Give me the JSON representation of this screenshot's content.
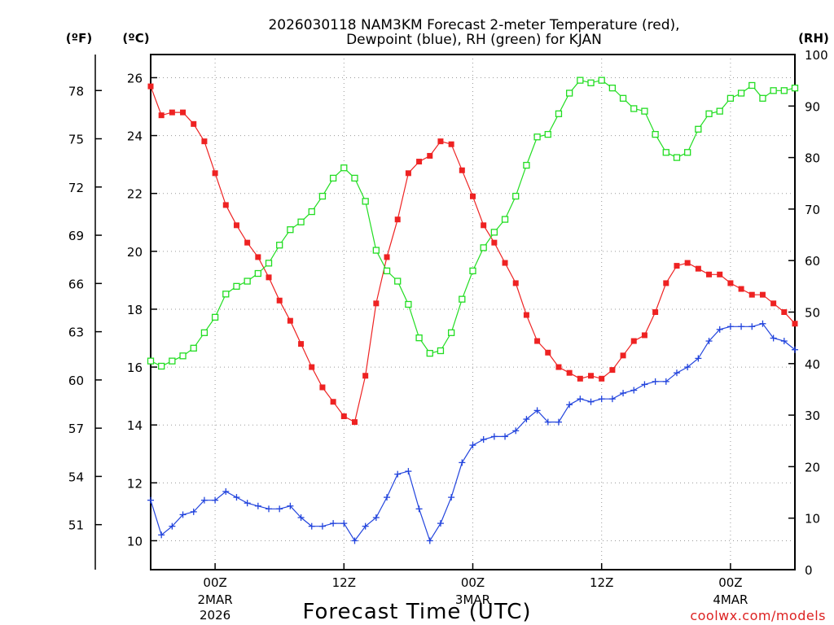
{
  "chart_data": {
    "type": "line",
    "title_line1": "2026030118 NAM3KM Forecast 2-meter Temperature (red),",
    "title_line2": "Dewpoint (blue), RH (green) for KJAN",
    "xlabel": "Forecast Time (UTC)",
    "credit": "coolwx.com/models",
    "units": {
      "fahrenheit": "(ºF)",
      "celsius": "(ºC)",
      "rh": "(RH)"
    },
    "x_range_hours": [
      0,
      60
    ],
    "ylim_celsius": [
      9,
      26.8
    ],
    "ylim_rh": [
      0,
      100
    ],
    "y_ticks_celsius": [
      "10",
      "12",
      "14",
      "16",
      "18",
      "20",
      "22",
      "24",
      "26"
    ],
    "y_ticks_fahrenheit": [
      "51",
      "54",
      "57",
      "60",
      "63",
      "66",
      "69",
      "72",
      "75",
      "78"
    ],
    "y_ticks_rh": [
      "0",
      "10",
      "20",
      "30",
      "40",
      "50",
      "60",
      "70",
      "80",
      "90",
      "100"
    ],
    "x_ticks": [
      {
        "hour": 6,
        "label": "00Z",
        "sub1": "2MAR",
        "sub2": "2026"
      },
      {
        "hour": 18,
        "label": "12Z",
        "sub1": "",
        "sub2": ""
      },
      {
        "hour": 30,
        "label": "00Z",
        "sub1": "3MAR",
        "sub2": ""
      },
      {
        "hour": 42,
        "label": "12Z",
        "sub1": "",
        "sub2": ""
      },
      {
        "hour": 54,
        "label": "00Z",
        "sub1": "4MAR",
        "sub2": ""
      }
    ],
    "series": [
      {
        "name": "Temperature (°C)",
        "color": "#ee2222",
        "axis": "celsius",
        "marker": "filled-square",
        "values": [
          25.7,
          24.7,
          24.8,
          24.8,
          24.4,
          23.8,
          22.7,
          21.6,
          20.9,
          20.3,
          19.8,
          19.1,
          18.3,
          17.6,
          16.8,
          16.0,
          15.3,
          14.8,
          14.3,
          14.1,
          15.7,
          18.2,
          19.8,
          21.1,
          22.7,
          23.1,
          23.3,
          23.8,
          23.7,
          22.8,
          21.9,
          20.9,
          20.3,
          19.6,
          18.9,
          17.8,
          16.9,
          16.5,
          16.0,
          15.8,
          15.6,
          15.7,
          15.6,
          15.9,
          16.4,
          16.9,
          17.1,
          17.9,
          18.9,
          19.5,
          19.6,
          19.4,
          19.2,
          19.2,
          18.9,
          18.7,
          18.5,
          18.5,
          18.2,
          17.9,
          17.5
        ]
      },
      {
        "name": "Dewpoint (°C)",
        "color": "#2244dd",
        "axis": "celsius",
        "marker": "plus",
        "values": [
          11.4,
          10.2,
          10.5,
          10.9,
          11.0,
          11.4,
          11.4,
          11.7,
          11.5,
          11.3,
          11.2,
          11.1,
          11.1,
          11.2,
          10.8,
          10.5,
          10.5,
          10.6,
          10.6,
          10.0,
          10.5,
          10.8,
          11.5,
          12.3,
          12.4,
          11.1,
          10.0,
          10.6,
          11.5,
          12.7,
          13.3,
          13.5,
          13.6,
          13.6,
          13.8,
          14.2,
          14.5,
          14.1,
          14.1,
          14.7,
          14.9,
          14.8,
          14.9,
          14.9,
          15.1,
          15.2,
          15.4,
          15.5,
          15.5,
          15.8,
          16.0,
          16.3,
          16.9,
          17.3,
          17.4,
          17.4,
          17.4,
          17.5,
          17.0,
          16.9,
          16.6
        ]
      },
      {
        "name": "Relative Humidity (%)",
        "color": "#22dd22",
        "axis": "rh",
        "marker": "open-square",
        "values": [
          40.5,
          39.5,
          40.5,
          41.5,
          43,
          46,
          49,
          53.5,
          55,
          56,
          57.5,
          59.5,
          63,
          66,
          67.5,
          69.5,
          72.5,
          76,
          78,
          76,
          71.5,
          62,
          58,
          56,
          51.5,
          45,
          42,
          42.5,
          46,
          52.5,
          58,
          62.5,
          65.5,
          68,
          72.5,
          78.5,
          84,
          84.5,
          88.5,
          92.5,
          95,
          94.5,
          95,
          93.5,
          91.5,
          89.5,
          89,
          84.5,
          81,
          80,
          81,
          85.5,
          88.5,
          89,
          91.5,
          92.5,
          94,
          91.5,
          93,
          93,
          93.5
        ]
      }
    ]
  }
}
